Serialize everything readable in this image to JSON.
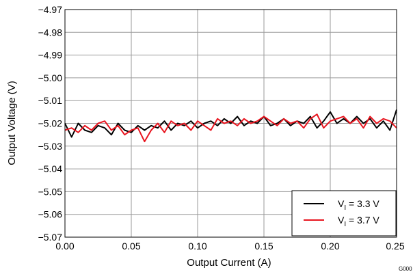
{
  "chart_data": {
    "type": "line",
    "xlabel": "Output Current (A)",
    "ylabel": "Output Voltage (V)",
    "xlim": [
      0,
      0.25
    ],
    "ylim": [
      -5.07,
      -4.97
    ],
    "x_ticks": [
      "0.00",
      "0.05",
      "0.10",
      "0.15",
      "0.20",
      "0.25"
    ],
    "y_ticks": [
      "−4.97",
      "−4.98",
      "−4.99",
      "−5.00",
      "−5.01",
      "−5.02",
      "−5.03",
      "−5.04",
      "−5.05",
      "−5.06",
      "−5.07"
    ],
    "grid": true,
    "legend_position": "bottom-right",
    "figure_code": "G000",
    "series": [
      {
        "name": "V",
        "subscript": "I",
        "value_text": " = 3.3 V",
        "color": "#000000",
        "x": [
          0.0,
          0.005,
          0.01,
          0.015,
          0.02,
          0.025,
          0.03,
          0.035,
          0.04,
          0.045,
          0.05,
          0.055,
          0.06,
          0.065,
          0.07,
          0.075,
          0.08,
          0.085,
          0.09,
          0.095,
          0.1,
          0.105,
          0.11,
          0.115,
          0.12,
          0.125,
          0.13,
          0.135,
          0.14,
          0.145,
          0.15,
          0.155,
          0.16,
          0.165,
          0.17,
          0.175,
          0.18,
          0.185,
          0.19,
          0.195,
          0.2,
          0.205,
          0.21,
          0.215,
          0.22,
          0.225,
          0.23,
          0.235,
          0.24,
          0.245,
          0.25
        ],
        "y": [
          -5.02,
          -5.026,
          -5.02,
          -5.023,
          -5.024,
          -5.021,
          -5.022,
          -5.025,
          -5.02,
          -5.023,
          -5.024,
          -5.021,
          -5.023,
          -5.021,
          -5.022,
          -5.019,
          -5.023,
          -5.02,
          -5.021,
          -5.019,
          -5.022,
          -5.02,
          -5.019,
          -5.021,
          -5.018,
          -5.02,
          -5.017,
          -5.021,
          -5.019,
          -5.02,
          -5.017,
          -5.021,
          -5.02,
          -5.018,
          -5.021,
          -5.019,
          -5.02,
          -5.017,
          -5.022,
          -5.019,
          -5.015,
          -5.02,
          -5.018,
          -5.02,
          -5.017,
          -5.02,
          -5.018,
          -5.022,
          -5.019,
          -5.023,
          -5.014
        ]
      },
      {
        "name": "V",
        "subscript": "I",
        "value_text": " = 3.7 V",
        "color": "#e8141e",
        "x": [
          0.0,
          0.005,
          0.01,
          0.015,
          0.02,
          0.025,
          0.03,
          0.035,
          0.04,
          0.045,
          0.05,
          0.055,
          0.06,
          0.065,
          0.07,
          0.075,
          0.08,
          0.085,
          0.09,
          0.095,
          0.1,
          0.105,
          0.11,
          0.115,
          0.12,
          0.125,
          0.13,
          0.135,
          0.14,
          0.145,
          0.15,
          0.155,
          0.16,
          0.165,
          0.17,
          0.175,
          0.18,
          0.185,
          0.19,
          0.195,
          0.2,
          0.205,
          0.21,
          0.215,
          0.22,
          0.225,
          0.23,
          0.235,
          0.24,
          0.245,
          0.25
        ],
        "y": [
          -5.023,
          -5.022,
          -5.024,
          -5.021,
          -5.023,
          -5.02,
          -5.019,
          -5.023,
          -5.021,
          -5.025,
          -5.023,
          -5.022,
          -5.028,
          -5.023,
          -5.02,
          -5.024,
          -5.019,
          -5.021,
          -5.02,
          -5.023,
          -5.019,
          -5.021,
          -5.023,
          -5.018,
          -5.02,
          -5.019,
          -5.021,
          -5.018,
          -5.02,
          -5.019,
          -5.017,
          -5.019,
          -5.021,
          -5.018,
          -5.02,
          -5.019,
          -5.022,
          -5.018,
          -5.016,
          -5.022,
          -5.019,
          -5.018,
          -5.017,
          -5.02,
          -5.018,
          -5.022,
          -5.017,
          -5.02,
          -5.018,
          -5.019,
          -5.022
        ]
      }
    ]
  }
}
